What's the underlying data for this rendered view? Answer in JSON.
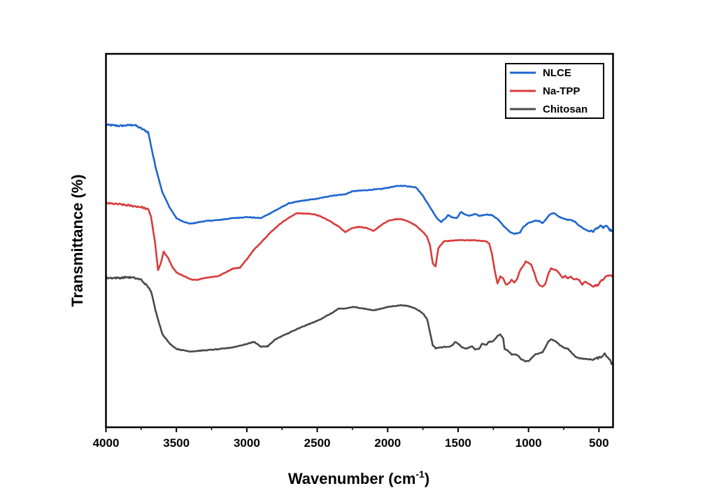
{
  "chart_data": {
    "type": "line",
    "title": "",
    "xlabel": "Wavenumber (cm",
    "xlabel_sup": "-1",
    "xlabel_end": ")",
    "ylabel": "Transmittance (%)",
    "xlim": [
      4000,
      400
    ],
    "ylim": [
      0,
      100
    ],
    "x_reversed": true,
    "yticks_shown": false,
    "xticks": [
      {
        "value": 4000,
        "label": "4000"
      },
      {
        "value": 3500,
        "label": "3500"
      },
      {
        "value": 3000,
        "label": "3000"
      },
      {
        "value": 2500,
        "label": "2500"
      },
      {
        "value": 2000,
        "label": "2000"
      },
      {
        "value": 1500,
        "label": "1500"
      },
      {
        "value": 1000,
        "label": "1000"
      },
      {
        "value": 500,
        "label": "500"
      }
    ],
    "legend_position": "top-right",
    "series": [
      {
        "name": "NLCE",
        "color": "#1f66d1",
        "points": [
          [
            4000,
            81
          ],
          [
            3900,
            80.7
          ],
          [
            3800,
            81
          ],
          [
            3750,
            80
          ],
          [
            3700,
            79
          ],
          [
            3650,
            70
          ],
          [
            3600,
            63
          ],
          [
            3550,
            59
          ],
          [
            3500,
            56
          ],
          [
            3450,
            55
          ],
          [
            3400,
            54.5
          ],
          [
            3300,
            55.2
          ],
          [
            3200,
            55.5
          ],
          [
            3100,
            56
          ],
          [
            3000,
            56.3
          ],
          [
            2900,
            56
          ],
          [
            2850,
            57
          ],
          [
            2800,
            58
          ],
          [
            2700,
            60
          ],
          [
            2600,
            60.7
          ],
          [
            2500,
            61.2
          ],
          [
            2400,
            62
          ],
          [
            2300,
            62.4
          ],
          [
            2250,
            63.2
          ],
          [
            2150,
            63.5
          ],
          [
            2050,
            63.8
          ],
          [
            1950,
            64.5
          ],
          [
            1900,
            64.7
          ],
          [
            1800,
            64.3
          ],
          [
            1750,
            62
          ],
          [
            1700,
            59
          ],
          [
            1650,
            56
          ],
          [
            1620,
            55
          ],
          [
            1600,
            55.6
          ],
          [
            1570,
            56.8
          ],
          [
            1540,
            56.2
          ],
          [
            1510,
            56
          ],
          [
            1480,
            57.6
          ],
          [
            1450,
            57
          ],
          [
            1420,
            56.6
          ],
          [
            1380,
            57.1
          ],
          [
            1350,
            56.6
          ],
          [
            1300,
            57
          ],
          [
            1260,
            56.8
          ],
          [
            1220,
            55.8
          ],
          [
            1180,
            54
          ],
          [
            1150,
            53
          ],
          [
            1130,
            52.2
          ],
          [
            1100,
            51.8
          ],
          [
            1060,
            52.2
          ],
          [
            1040,
            53.5
          ],
          [
            1000,
            54.8
          ],
          [
            980,
            55
          ],
          [
            950,
            55.3
          ],
          [
            920,
            55.2
          ],
          [
            900,
            54.6
          ],
          [
            870,
            56
          ],
          [
            850,
            57
          ],
          [
            820,
            57.4
          ],
          [
            790,
            56.5
          ],
          [
            760,
            56
          ],
          [
            730,
            55.6
          ],
          [
            700,
            55.5
          ],
          [
            670,
            55
          ],
          [
            640,
            54
          ],
          [
            600,
            53
          ],
          [
            570,
            52.5
          ],
          [
            540,
            52.5
          ],
          [
            510,
            53.5
          ],
          [
            490,
            53.8
          ],
          [
            470,
            53.5
          ],
          [
            450,
            54
          ],
          [
            430,
            53
          ],
          [
            400,
            52.5
          ]
        ]
      },
      {
        "name": "Na-TPP",
        "color": "#d93b3b",
        "points": [
          [
            4000,
            60
          ],
          [
            3900,
            59.7
          ],
          [
            3800,
            59.2
          ],
          [
            3750,
            59
          ],
          [
            3700,
            58.3
          ],
          [
            3680,
            56.5
          ],
          [
            3650,
            49
          ],
          [
            3630,
            42
          ],
          [
            3610,
            44
          ],
          [
            3590,
            47
          ],
          [
            3560,
            45.5
          ],
          [
            3530,
            43
          ],
          [
            3500,
            41.5
          ],
          [
            3450,
            40.5
          ],
          [
            3400,
            39.6
          ],
          [
            3350,
            39.5
          ],
          [
            3300,
            40
          ],
          [
            3200,
            40.5
          ],
          [
            3100,
            42.5
          ],
          [
            3050,
            42.7
          ],
          [
            3000,
            45
          ],
          [
            2950,
            47.5
          ],
          [
            2900,
            49.5
          ],
          [
            2850,
            51.5
          ],
          [
            2800,
            53.3
          ],
          [
            2750,
            54.9
          ],
          [
            2700,
            56.1
          ],
          [
            2650,
            57.3
          ],
          [
            2550,
            57.2
          ],
          [
            2500,
            56.8
          ],
          [
            2450,
            56
          ],
          [
            2400,
            55
          ],
          [
            2350,
            53.8
          ],
          [
            2300,
            52.3
          ],
          [
            2250,
            53.4
          ],
          [
            2200,
            53.7
          ],
          [
            2150,
            53.3
          ],
          [
            2100,
            52.6
          ],
          [
            2050,
            54
          ],
          [
            2000,
            55.2
          ],
          [
            1950,
            55.7
          ],
          [
            1900,
            55.7
          ],
          [
            1850,
            55.1
          ],
          [
            1800,
            54
          ],
          [
            1750,
            52.3
          ],
          [
            1720,
            51
          ],
          [
            1700,
            48.8
          ],
          [
            1680,
            44
          ],
          [
            1660,
            43
          ],
          [
            1640,
            48
          ],
          [
            1600,
            49.8
          ],
          [
            1500,
            50.1
          ],
          [
            1400,
            50.1
          ],
          [
            1300,
            49.8
          ],
          [
            1280,
            49.3
          ],
          [
            1260,
            46.5
          ],
          [
            1240,
            42
          ],
          [
            1220,
            38.5
          ],
          [
            1200,
            40.5
          ],
          [
            1180,
            39.8
          ],
          [
            1160,
            38.2
          ],
          [
            1140,
            38.5
          ],
          [
            1120,
            39.5
          ],
          [
            1100,
            38.8
          ],
          [
            1080,
            39.8
          ],
          [
            1060,
            42
          ],
          [
            1040,
            43
          ],
          [
            1020,
            44.4
          ],
          [
            1000,
            44
          ],
          [
            980,
            43.5
          ],
          [
            960,
            41.5
          ],
          [
            940,
            39
          ],
          [
            920,
            38
          ],
          [
            900,
            37.6
          ],
          [
            880,
            38.5
          ],
          [
            860,
            41
          ],
          [
            840,
            42.6
          ],
          [
            820,
            42.2
          ],
          [
            800,
            42
          ],
          [
            780,
            41.2
          ],
          [
            760,
            40
          ],
          [
            740,
            40.5
          ],
          [
            720,
            39.8
          ],
          [
            700,
            40.4
          ],
          [
            680,
            39.6
          ],
          [
            660,
            39.8
          ],
          [
            640,
            39.4
          ],
          [
            620,
            38.2
          ],
          [
            600,
            39
          ],
          [
            580,
            38.5
          ],
          [
            560,
            38.3
          ],
          [
            540,
            37.8
          ],
          [
            520,
            38
          ],
          [
            500,
            38.3
          ],
          [
            480,
            39.4
          ],
          [
            460,
            40
          ],
          [
            440,
            40.5
          ],
          [
            420,
            40.9
          ],
          [
            400,
            40.2
          ]
        ]
      },
      {
        "name": "Chitosan",
        "color": "#4a4a4a",
        "points": [
          [
            4000,
            40
          ],
          [
            3900,
            40
          ],
          [
            3850,
            40.2
          ],
          [
            3800,
            40
          ],
          [
            3750,
            39.5
          ],
          [
            3700,
            37.5
          ],
          [
            3680,
            36.5
          ],
          [
            3650,
            31.5
          ],
          [
            3600,
            25
          ],
          [
            3550,
            22.5
          ],
          [
            3500,
            21
          ],
          [
            3450,
            20.6
          ],
          [
            3400,
            20.3
          ],
          [
            3300,
            20.6
          ],
          [
            3200,
            20.9
          ],
          [
            3100,
            21.4
          ],
          [
            3000,
            22.3
          ],
          [
            2950,
            22.9
          ],
          [
            2900,
            21.6
          ],
          [
            2850,
            21.7
          ],
          [
            2800,
            23.5
          ],
          [
            2700,
            25.3
          ],
          [
            2600,
            27
          ],
          [
            2500,
            28.5
          ],
          [
            2400,
            30.5
          ],
          [
            2350,
            31.7
          ],
          [
            2300,
            31.8
          ],
          [
            2250,
            32.2
          ],
          [
            2200,
            32
          ],
          [
            2100,
            31.3
          ],
          [
            2000,
            32.2
          ],
          [
            1950,
            32.5
          ],
          [
            1900,
            32.7
          ],
          [
            1850,
            32.4
          ],
          [
            1800,
            31.8
          ],
          [
            1750,
            30.5
          ],
          [
            1720,
            29
          ],
          [
            1700,
            25.5
          ],
          [
            1680,
            22
          ],
          [
            1660,
            21.2
          ],
          [
            1600,
            21.5
          ],
          [
            1550,
            21.7
          ],
          [
            1520,
            22.8
          ],
          [
            1500,
            22.4
          ],
          [
            1470,
            21.3
          ],
          [
            1440,
            21.1
          ],
          [
            1400,
            21.7
          ],
          [
            1380,
            20.8
          ],
          [
            1350,
            21.1
          ],
          [
            1330,
            22.3
          ],
          [
            1300,
            22.1
          ],
          [
            1280,
            22.9
          ],
          [
            1250,
            23
          ],
          [
            1220,
            24.5
          ],
          [
            1200,
            24.9
          ],
          [
            1180,
            23.8
          ],
          [
            1170,
            21
          ],
          [
            1150,
            20.6
          ],
          [
            1120,
            19.5
          ],
          [
            1100,
            19.5
          ],
          [
            1080,
            19.4
          ],
          [
            1050,
            18.2
          ],
          [
            1020,
            17.7
          ],
          [
            1000,
            17.7
          ],
          [
            980,
            18.5
          ],
          [
            950,
            19.6
          ],
          [
            920,
            19.8
          ],
          [
            900,
            20.1
          ],
          [
            880,
            21.4
          ],
          [
            860,
            22.9
          ],
          [
            840,
            23.5
          ],
          [
            820,
            23.3
          ],
          [
            800,
            22.8
          ],
          [
            780,
            22.1
          ],
          [
            750,
            21.3
          ],
          [
            720,
            21
          ],
          [
            700,
            20.2
          ],
          [
            670,
            19
          ],
          [
            640,
            18.5
          ],
          [
            600,
            18.3
          ],
          [
            570,
            18.2
          ],
          [
            540,
            18.2
          ],
          [
            500,
            18.6
          ],
          [
            480,
            19
          ],
          [
            460,
            19.7
          ],
          [
            440,
            18.8
          ],
          [
            420,
            18.2
          ],
          [
            410,
            16.7
          ],
          [
            400,
            17.5
          ]
        ]
      }
    ]
  }
}
